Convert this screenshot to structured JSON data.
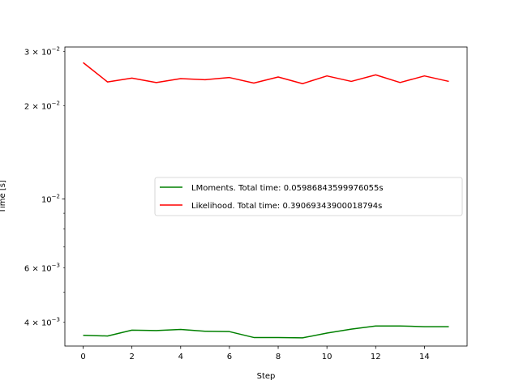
{
  "chart_data": {
    "type": "line",
    "xlabel": "Step",
    "ylabel": "Time [s]",
    "yscale": "log",
    "xlim": [
      -0.75,
      15.75
    ],
    "ylim": [
      0.00335,
      0.031
    ],
    "x_ticks": [
      0,
      2,
      4,
      6,
      8,
      10,
      12,
      14
    ],
    "x_tick_labels": [
      "0",
      "2",
      "4",
      "6",
      "8",
      "10",
      "12",
      "14"
    ],
    "y_major_ticks": [
      {
        "value": 0.01,
        "mantissa": "",
        "exponent": "−2"
      }
    ],
    "y_minor_ticks": [
      {
        "value": 0.004,
        "mantissa": "4",
        "exponent": "−3",
        "labeled": true
      },
      {
        "value": 0.005,
        "mantissa": "",
        "exponent": "",
        "labeled": false
      },
      {
        "value": 0.006,
        "mantissa": "6",
        "exponent": "−3",
        "labeled": true
      },
      {
        "value": 0.007,
        "mantissa": "",
        "exponent": "",
        "labeled": false
      },
      {
        "value": 0.008,
        "mantissa": "",
        "exponent": "",
        "labeled": false
      },
      {
        "value": 0.009,
        "mantissa": "",
        "exponent": "",
        "labeled": false
      },
      {
        "value": 0.02,
        "mantissa": "2",
        "exponent": "−2",
        "labeled": true
      },
      {
        "value": 0.03,
        "mantissa": "3",
        "exponent": "−2",
        "labeled": true
      }
    ],
    "legend_position": "center-right",
    "grid": false,
    "x": [
      0,
      1,
      2,
      3,
      4,
      5,
      6,
      7,
      8,
      9,
      10,
      11,
      12,
      13,
      14,
      15
    ],
    "series": [
      {
        "name": "LMoments. Total time: 0.05986843599976055s",
        "color": "#008000",
        "values": [
          0.00363,
          0.00361,
          0.00377,
          0.00376,
          0.00379,
          0.00374,
          0.00373,
          0.00357,
          0.00357,
          0.00356,
          0.00369,
          0.0038,
          0.00389,
          0.00389,
          0.00387,
          0.00387
        ]
      },
      {
        "name": "Likelihood. Total time: 0.39069343900018794s",
        "color": "#ff0000",
        "values": [
          0.0276,
          0.0239,
          0.0246,
          0.0238,
          0.0245,
          0.0243,
          0.0247,
          0.0237,
          0.0248,
          0.0236,
          0.025,
          0.024,
          0.0252,
          0.0238,
          0.025,
          0.024
        ]
      }
    ]
  }
}
